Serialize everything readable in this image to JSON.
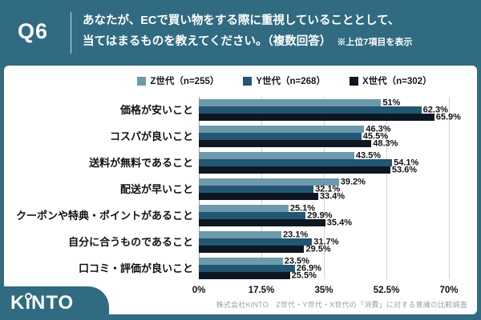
{
  "colors": {
    "background_teal": "#316b82",
    "panel_white": "#ffffff",
    "gridline": "#cfd4d7",
    "text_dark": "#111111",
    "source_gray": "#98a0a4",
    "series_z": "#6d99ad",
    "series_y": "#235672",
    "series_x": "#0d1722"
  },
  "header": {
    "qno": "Q6",
    "question_line1": "あなたが、ECで買い物をする際に重視していることとして、",
    "question_line2": "当てはまるものを教えてください。（複数回答）",
    "question_note": "※上位7項目を表示"
  },
  "chart_data": {
    "type": "bar",
    "orientation": "horizontal",
    "categories": [
      "価格が安いこと",
      "コスパが良いこと",
      "送料が無料であること",
      "配送が早いこと",
      "クーポンや特典・ポイントがあること",
      "自分に合うものであること",
      "口コミ・評価が良いこと"
    ],
    "series": [
      {
        "name": "Z世代（n=255）",
        "color": "#6d99ad",
        "values": [
          51,
          46.3,
          43.5,
          39.2,
          25.1,
          23.1,
          23.5
        ],
        "labels": [
          "51%",
          "46.3%",
          "43.5%",
          "39.2%",
          "25.1%",
          "23.1%",
          "23.5%"
        ]
      },
      {
        "name": "Y世代（n=268）",
        "color": "#235672",
        "values": [
          62.3,
          45.5,
          54.1,
          32.1,
          29.9,
          31.7,
          26.9
        ],
        "labels": [
          "62.3%",
          "45.5%",
          "54.1%",
          "32.1%",
          "29.9%",
          "31.7%",
          "26.9%"
        ]
      },
      {
        "name": "X世代（n=302）",
        "color": "#0d1722",
        "values": [
          65.9,
          48.3,
          53.6,
          33.4,
          35.4,
          29.5,
          25.5
        ],
        "labels": [
          "65.9%",
          "48.3%",
          "53.6%",
          "33.4%",
          "35.4%",
          "29.5%",
          "25.5%"
        ]
      }
    ],
    "xlim": [
      0,
      70
    ],
    "xticks": [
      {
        "label": "0%",
        "pct": 0
      },
      {
        "label": "17.5%",
        "pct": 25
      },
      {
        "label": "35%",
        "pct": 50
      },
      {
        "label": "52.5%",
        "pct": 75
      },
      {
        "label": "70%",
        "pct": 100
      }
    ],
    "grid": true,
    "legend_position": "top"
  },
  "footer": {
    "logo": "KINTO",
    "source": "株式会社KINTO　Z世代・Y世代・X世代の「消費」に対する意識の比較調査"
  }
}
